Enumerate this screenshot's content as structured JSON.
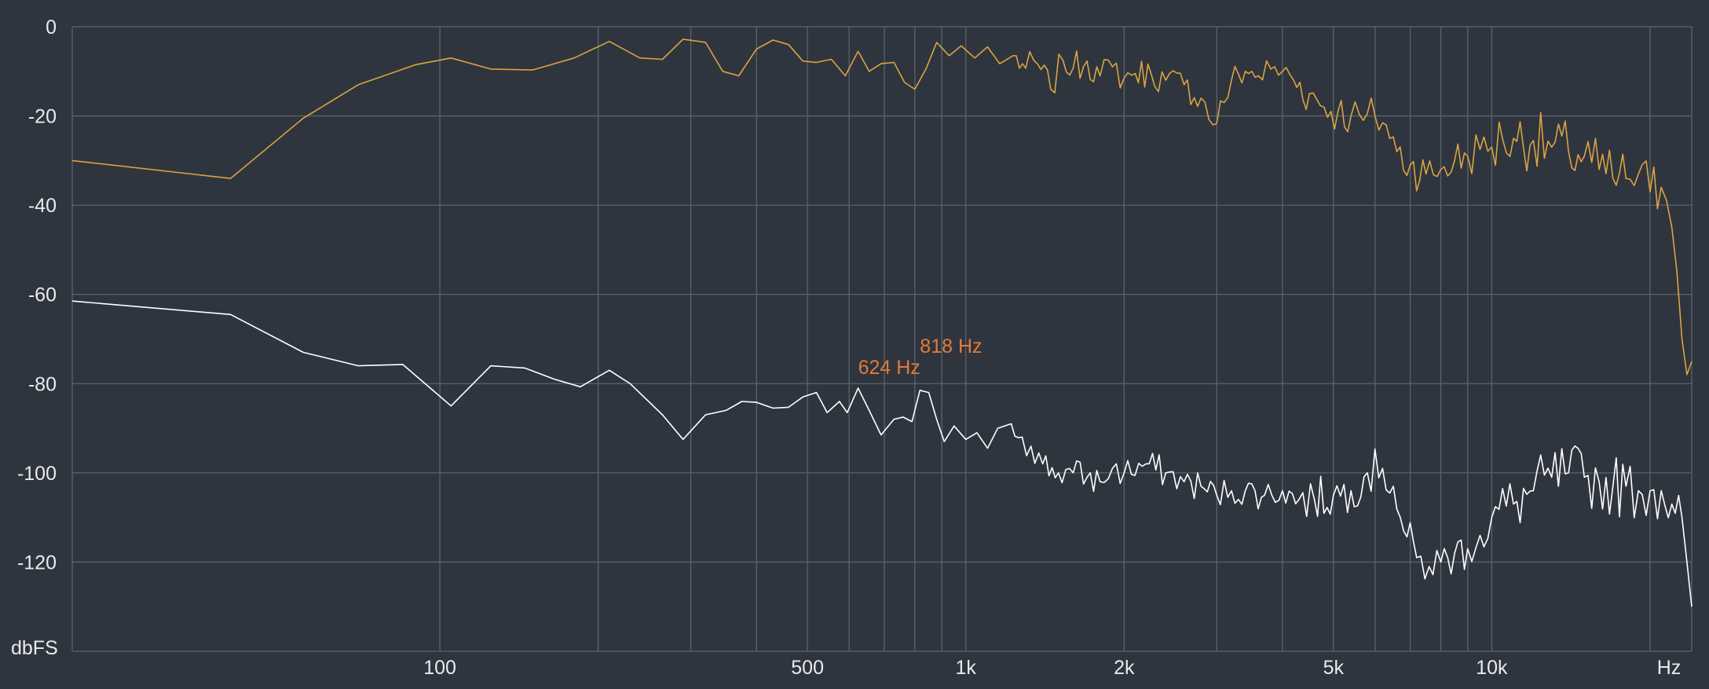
{
  "chart_data": {
    "type": "line",
    "xscale": "log",
    "xlim": [
      20,
      24000
    ],
    "ylim": [
      -140,
      0
    ],
    "grid": true,
    "y_ticks": [
      0,
      -20,
      -40,
      -60,
      -80,
      -100,
      -120
    ],
    "y_tick_labels": [
      "0",
      "-20",
      "-40",
      "-60",
      "-80",
      "-100",
      "-120"
    ],
    "y_unit": "dbFS",
    "x_grid_lines": [
      100,
      200,
      300,
      400,
      500,
      600,
      700,
      800,
      900,
      1000,
      2000,
      3000,
      4000,
      5000,
      6000,
      7000,
      8000,
      9000,
      10000,
      20000
    ],
    "x_ticks": [
      100,
      500,
      1000,
      2000,
      5000,
      10000
    ],
    "x_tick_labels": [
      "100",
      "500",
      "1k",
      "2k",
      "5k",
      "10k"
    ],
    "x_unit": "Hz",
    "annotations": [
      {
        "text": "624 Hz",
        "x": 624,
        "y": -81,
        "color": "#e07b39"
      },
      {
        "text": "818 Hz",
        "x": 818,
        "y": -81.5,
        "color": "#e07b39"
      }
    ],
    "series": [
      {
        "color": "#d9a441",
        "points": [
          [
            20,
            -30
          ],
          [
            40,
            -34
          ],
          [
            55,
            -20.5
          ],
          [
            70,
            -13
          ],
          [
            90,
            -8.5
          ],
          [
            105,
            -7
          ],
          [
            125,
            -9.5
          ],
          [
            150,
            -9.7
          ],
          [
            180,
            -7
          ],
          [
            210,
            -3.3
          ],
          [
            240,
            -7
          ],
          [
            265,
            -7.3
          ],
          [
            290,
            -2.8
          ],
          [
            320,
            -3.5
          ],
          [
            345,
            -10
          ],
          [
            370,
            -11
          ],
          [
            400,
            -5
          ],
          [
            430,
            -3
          ],
          [
            460,
            -4
          ],
          [
            490,
            -7.7
          ],
          [
            520,
            -8
          ],
          [
            555,
            -7.3
          ],
          [
            590,
            -11
          ],
          [
            624,
            -5.5
          ],
          [
            655,
            -10
          ],
          [
            690,
            -8.3
          ],
          [
            730,
            -8
          ],
          [
            765,
            -12.5
          ],
          [
            800,
            -14
          ],
          [
            840,
            -9.5
          ],
          [
            880,
            -3.5
          ],
          [
            930,
            -6.5
          ],
          [
            980,
            -4.3
          ],
          [
            1040,
            -7
          ],
          [
            1100,
            -4.5
          ],
          [
            1160,
            -8.3
          ],
          [
            1230,
            -6.5
          ],
          [
            1300,
            -9.3
          ],
          [
            1370,
            -8.4
          ],
          [
            1450,
            -14
          ],
          [
            1530,
            -7.5
          ],
          [
            1600,
            -9.3
          ],
          [
            1700,
            -7.7
          ],
          [
            1800,
            -11
          ],
          [
            1900,
            -9
          ],
          [
            2000,
            -11.5
          ],
          [
            2100,
            -10.5
          ],
          [
            2250,
            -10.5
          ],
          [
            2400,
            -12
          ],
          [
            2600,
            -13
          ],
          [
            2800,
            -16
          ],
          [
            2950,
            -22
          ],
          [
            3100,
            -17
          ],
          [
            3200,
            -12
          ],
          [
            3400,
            -10
          ],
          [
            3600,
            -11
          ],
          [
            3800,
            -9.5
          ],
          [
            4000,
            -10
          ],
          [
            4200,
            -12
          ],
          [
            4500,
            -15
          ],
          [
            4800,
            -18
          ],
          [
            5100,
            -19
          ],
          [
            5400,
            -20
          ],
          [
            5700,
            -21
          ],
          [
            6000,
            -20
          ],
          [
            6300,
            -22
          ],
          [
            6600,
            -28
          ],
          [
            7000,
            -31
          ],
          [
            7500,
            -33
          ],
          [
            8000,
            -32
          ],
          [
            8500,
            -30
          ],
          [
            9000,
            -29
          ],
          [
            9500,
            -27.5
          ],
          [
            10000,
            -27
          ],
          [
            10500,
            -25.5
          ],
          [
            11000,
            -25
          ],
          [
            12000,
            -25.5
          ],
          [
            13000,
            -27
          ],
          [
            14000,
            -28
          ],
          [
            15000,
            -29
          ],
          [
            16000,
            -32
          ],
          [
            17000,
            -34
          ],
          [
            18000,
            -34
          ],
          [
            19000,
            -33
          ],
          [
            20000,
            -37
          ],
          [
            21000,
            -36
          ],
          [
            21500,
            -39
          ],
          [
            22000,
            -45
          ],
          [
            22500,
            -55
          ],
          [
            23000,
            -70
          ],
          [
            23500,
            -78
          ],
          [
            24000,
            -75
          ]
        ]
      },
      {
        "color": "#ffffff",
        "points": [
          [
            20,
            -61.5
          ],
          [
            40,
            -64.5
          ],
          [
            55,
            -73
          ],
          [
            70,
            -76
          ],
          [
            85,
            -75.7
          ],
          [
            105,
            -85
          ],
          [
            125,
            -76
          ],
          [
            145,
            -76.5
          ],
          [
            165,
            -79
          ],
          [
            185,
            -80.7
          ],
          [
            210,
            -77
          ],
          [
            230,
            -80
          ],
          [
            265,
            -87
          ],
          [
            290,
            -92.5
          ],
          [
            320,
            -87
          ],
          [
            350,
            -86
          ],
          [
            375,
            -84
          ],
          [
            400,
            -84.2
          ],
          [
            430,
            -85.5
          ],
          [
            460,
            -85.3
          ],
          [
            490,
            -83
          ],
          [
            520,
            -82
          ],
          [
            545,
            -86.5
          ],
          [
            575,
            -84
          ],
          [
            595,
            -86.5
          ],
          [
            624,
            -81
          ],
          [
            655,
            -86
          ],
          [
            690,
            -91.5
          ],
          [
            730,
            -88
          ],
          [
            760,
            -87.5
          ],
          [
            790,
            -88.5
          ],
          [
            818,
            -81.5
          ],
          [
            850,
            -82
          ],
          [
            880,
            -88
          ],
          [
            910,
            -93
          ],
          [
            950,
            -89.5
          ],
          [
            1000,
            -92.5
          ],
          [
            1050,
            -91
          ],
          [
            1100,
            -94.5
          ],
          [
            1150,
            -90
          ],
          [
            1220,
            -89
          ],
          [
            1280,
            -92
          ],
          [
            1330,
            -94
          ],
          [
            1400,
            -98
          ],
          [
            1500,
            -100
          ],
          [
            1600,
            -100
          ],
          [
            1700,
            -101
          ],
          [
            1800,
            -102
          ],
          [
            1900,
            -99
          ],
          [
            2000,
            -100
          ],
          [
            2200,
            -98
          ],
          [
            2400,
            -100
          ],
          [
            2600,
            -102
          ],
          [
            2800,
            -103
          ],
          [
            3000,
            -105
          ],
          [
            3200,
            -104
          ],
          [
            3400,
            -104
          ],
          [
            3700,
            -105
          ],
          [
            4000,
            -104
          ],
          [
            4300,
            -106
          ],
          [
            4600,
            -106
          ],
          [
            5000,
            -105
          ],
          [
            5400,
            -104
          ],
          [
            5800,
            -100
          ],
          [
            6200,
            -99
          ],
          [
            6500,
            -103
          ],
          [
            6800,
            -113
          ],
          [
            7200,
            -119
          ],
          [
            7600,
            -121
          ],
          [
            8000,
            -120
          ],
          [
            8500,
            -118
          ],
          [
            9000,
            -117
          ],
          [
            9500,
            -114
          ],
          [
            10000,
            -110
          ],
          [
            11000,
            -107
          ],
          [
            12000,
            -104
          ],
          [
            13000,
            -101
          ],
          [
            14000,
            -100
          ],
          [
            15000,
            -101
          ],
          [
            16000,
            -102
          ],
          [
            17000,
            -103
          ],
          [
            18000,
            -103
          ],
          [
            19000,
            -104
          ],
          [
            20000,
            -104
          ],
          [
            21000,
            -104
          ],
          [
            22000,
            -107
          ],
          [
            23000,
            -110
          ],
          [
            23500,
            -120
          ],
          [
            24000,
            -130
          ]
        ]
      }
    ]
  }
}
